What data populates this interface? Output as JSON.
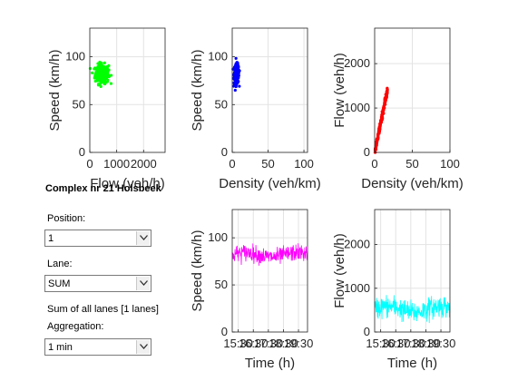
{
  "title": "Complex nr 21 Holsbeek",
  "controls": {
    "position_label": "Position:",
    "position_value": "1",
    "lane_label": "Lane:",
    "lane_value": "SUM",
    "sum_text": "Sum of all lanes [1 lanes]",
    "aggregation_label": "Aggregation:",
    "aggregation_value": "1 min"
  },
  "chart_data": [
    {
      "id": "flow-speed",
      "type": "scatter",
      "xlabel": "Flow (veh/h)",
      "ylabel": "Speed (km/h)",
      "xlim": [
        0,
        2800
      ],
      "ylim": [
        0,
        130
      ],
      "xticks": [
        "0",
        "1000",
        "2000"
      ],
      "yticks": [
        "0",
        "50",
        "100"
      ],
      "color": "#00ff00",
      "cluster": {
        "x_center": 450,
        "x_spread": 250,
        "y_center": 82,
        "y_spread": 10,
        "count": 260
      },
      "grid": true
    },
    {
      "id": "density-speed",
      "type": "scatter",
      "xlabel": "Density (veh/km)",
      "ylabel": "Speed (km/h)",
      "xlim": [
        0,
        105
      ],
      "ylim": [
        0,
        130
      ],
      "xticks": [
        "0",
        "50",
        "100"
      ],
      "yticks": [
        "0",
        "50",
        "100"
      ],
      "color": "#0000ff",
      "cluster": {
        "x_center": 6,
        "x_spread": 3.5,
        "y_center": 82,
        "y_spread": 10,
        "count": 240
      },
      "grid": true
    },
    {
      "id": "density-flow",
      "type": "scatter",
      "xlabel": "Density (veh/km)",
      "ylabel": "Flow (veh/h)",
      "xlim": [
        0,
        100
      ],
      "ylim": [
        0,
        2800
      ],
      "xticks": [
        "0",
        "50",
        "100"
      ],
      "yticks": [
        "0",
        "1000",
        "2000"
      ],
      "color": "#ff0000",
      "cluster": {
        "x_min": 0.5,
        "x_max": 17,
        "speed": 82,
        "count": 220
      },
      "grid": true
    },
    {
      "id": "time-speed",
      "type": "line",
      "xlabel": "Time (h)",
      "ylabel": "Speed (km/h)",
      "ylim": [
        0,
        130
      ],
      "xticks": [
        "15:30",
        "16:30",
        "17:30",
        "18:30",
        "19:30"
      ],
      "yticks": [
        "0",
        "50",
        "100"
      ],
      "color": "#ff00ff",
      "series_level": 82,
      "series_noise": 8,
      "points": 300,
      "grid": true
    },
    {
      "id": "time-flow",
      "type": "line",
      "xlabel": "Time (h)",
      "ylabel": "Flow (veh/h)",
      "ylim": [
        0,
        2800
      ],
      "xticks": [
        "15:30",
        "16:30",
        "17:30",
        "18:30",
        "19:30"
      ],
      "yticks": [
        "0",
        "1000",
        "2000"
      ],
      "color": "#00ffff",
      "series_level": 520,
      "series_noise": 230,
      "points": 300,
      "grid": true
    }
  ]
}
